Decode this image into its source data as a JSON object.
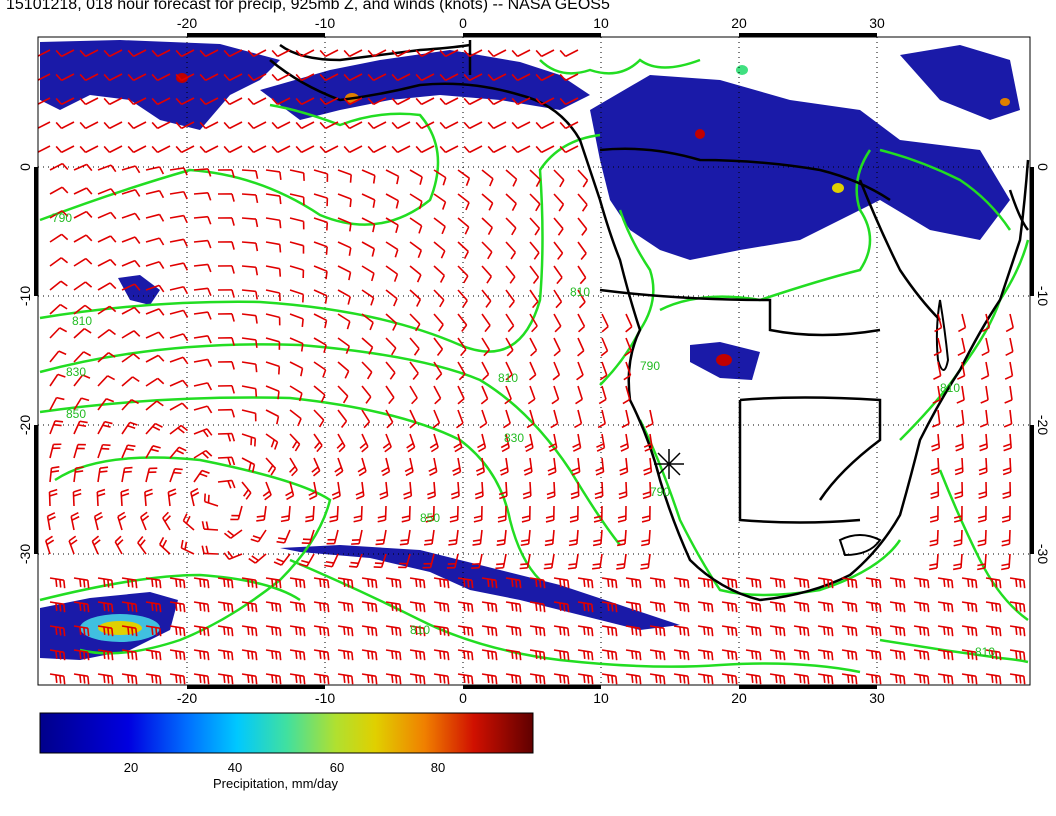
{
  "title": "15101218, 018 hour forecast for precip, 925mb Z, and winds (knots) -- NASA GEOS5",
  "map": {
    "lon_range": [
      -30,
      40
    ],
    "lat_range": [
      -40,
      10
    ],
    "grid": "dotted",
    "lon_ticks": [
      "-20",
      "-10",
      "0",
      "10",
      "20",
      "30"
    ],
    "lat_ticks": [
      "0",
      "-10",
      "-20",
      "-30"
    ],
    "contour_labels": [
      "790",
      "810",
      "830",
      "850",
      "810",
      "830",
      "850",
      "810",
      "790",
      "810",
      "810",
      "810",
      "790"
    ],
    "colors": {
      "wind_barbs": "#e00000",
      "contours": "#22dd22",
      "coastlines": "#000000",
      "precip_low": "#1a1aa0"
    }
  },
  "colorbar": {
    "title": "Precipitation, mm/day",
    "tick_labels": [
      "20",
      "40",
      "60",
      "80"
    ],
    "colors": [
      "#00008b",
      "#0000d8",
      "#0050ff",
      "#00b0ff",
      "#00e0c0",
      "#40e080",
      "#a0e040",
      "#e0d000",
      "#f09000",
      "#e03000",
      "#b00000",
      "#600000"
    ]
  }
}
